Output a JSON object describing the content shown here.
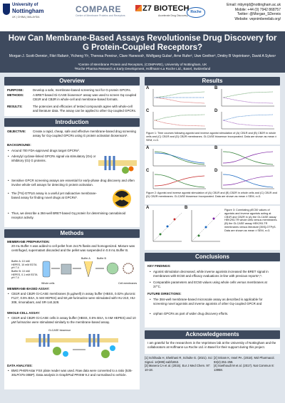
{
  "header": {
    "uon_line1": "University of",
    "uon_line2": "Nottingham",
    "uon_line3": "UK | CHINA | MALAYSIA",
    "compare": "COMPARE",
    "compare_sub": "Centre of Membrane Proteins and Receptors",
    "z7": "Z7 BIOTECH",
    "z7_sub": "Accelerate Drug Discovery",
    "roche": "Roche",
    "email": "Email: mbymjd@nottingham.ac.uk",
    "mobile": "Mobile: +44 (0) 7942 868757",
    "twitter": "Twitter: @Morgan_SDennis",
    "website": "Website: vepnimbereilab.org/"
  },
  "title": "How Can Membrane-Based Assays Revolutionise Drug Discovery for G Protein-Coupled Receptors?",
  "authors": "Morgan J. Scott-Dennis¹, Fikri Rafani¹, Yicheng Yi¹, Theresa Pereira¹, Clare Harwood¹, Wolfgang Guba², Arne Rufer², Uwe Grether², Dmitry B Veprintsev¹, David A Sykes¹",
  "affiliations": [
    "¹Centre of Membrane Protein and Receptors, (COMPARE), University of Nottingham, UK",
    "²Roche Pharma Research & Early Development, Hoffmann-La Roche Ltd., Basel, Switzerland"
  ],
  "overview": {
    "heading": "Overview",
    "purpose_label": "PURPOSE:",
    "purpose": "Develop a safe, membrane-based screening tool for G‑protein GPCRs.",
    "methods_label": "METHODS:",
    "methods": "A BRET-based Gi-CASE biosensor¹ assay was used to screen Gq-coupled CB1R and CB2R in whole-cell and membrane-based formats.",
    "results_label": "RESULTS:",
    "results": "The potencies and efficacies of tested compounds agree with whole-cell and literature data. The assay can be applied to other Gq-coupled GPCRs."
  },
  "introduction": {
    "heading": "Introduction",
    "objective_label": "OBJECTIVE:",
    "objective": "Create a rapid, cheap, safe and effective membrane-based drug screening assay for Gq-coupled GPCRs using G protein activation biosensors¹.",
    "background_label": "BACKGROUND:",
    "bullets": [
      "Around 700 FDA-approved drugs target GPCRs².",
      "Adenylyl cyclase-linked GPCRs signal via stimulatory (Gs) or inhibitory (Gi) G proteins.",
      "Sensitive GPCR screening assays are essential for early-phase drug discovery and often involve whole-cell assays for detecting G protein activation.",
      "The [³⁵S]-GTPγS assay is a useful yet radioactive membrane-based assay for finding novel drugs at GPCRs³.",
      "Thus, we describe a 384-well BRET-based Gq protein for determining cannabinoid receptor activity."
    ]
  },
  "methods": {
    "heading": "Methods",
    "prep_label": "MEMBRANE PREPARATION:",
    "prep": "20 mL Buffer A was added to cell pellet from 2x175 flasks and homogenized. Mixture was centrifuged, supernatant discarded and the pellet was suspended in 0.8 mL Buffer B.",
    "buffer_a": "Buffer A: 10 mM HEPES, 10 mM EDTA pH 7.4",
    "buffer_b": "Buffer B: 10 mM HEPES, 0.1 mM EDTA pH 7.4",
    "diag_buffer_a": "Buffer A",
    "diag_buffer_b": "Buffer B",
    "diag_whole": "Whole cells",
    "diag_membranes": "Cell membranes",
    "binding_label": "MEMBRANE-BASED ASSAY:",
    "binding": "CB1R and CB2R Gi-CASE membranes (5 µg/well) in assay buffer (HBSS, 0.02% pluronic F127, 0.5% BSA, 5 mM HEPES) and 50 µM furimazine were stimulated with HU-210, HU-308, rimonabant, and SR-144,528.",
    "wholecell_label": "WHOLE-CELL ASSAY:",
    "wholecell": "CB1R and CB2R Gi-CASE cells in assay buffer (HBSS, 0.5% BSA, 5 mM HEPES) and 10 µM furimazine were stimulated similarly to the membrane-based assay.",
    "biosensor_label": "Gi-CASE biosensor",
    "analysis_label": "DATA ANALYSIS:",
    "analysis": "BMG PHERAstar FSX plate reader was used. Raw data were converted to a ratio (535-30LP/475-30BP). Data analysis in GraphPad PRISM 9.2 and normalised to vehicle."
  },
  "results": {
    "heading": "Results",
    "fig1_caption": "Figure 1: Time courses following agonist and inverse agonist stimulation of (A) CB1R and (B) CB2R in whole cells and (C) CB1R and (D) CB2R membranes. Gi-CASE biosensor incorporated. Data are shown as mean ± SEM, n=3.",
    "fig2_caption": "Figure 2: Agonist and inverse agonist stimulation of (A) CB1R and (B) CB2R in whole cells and (C) CB1R and (D) CB2R membranes. Gi-CASE biosensor incorporated. Data are shown as mean ± SEM, n=3.",
    "fig3_caption": "Figure 3: Correlating pEC50 values of agonists and inverse agonists acting at CB1R and CB2R in (A) the Gi-CASE assay HEK293-TR whole cells versus membranes. (B) the Gi-CASE assay HEK293-TR membranes versus literature [35S]-GTPγS. Data are shown as mean ± SEM, n=3.",
    "panels": [
      "A",
      "B",
      "C",
      "D"
    ],
    "fig3_panels": [
      "A",
      "B"
    ]
  },
  "conclusions": {
    "heading": "Conclusions",
    "key_label": "KEY FINDINGS:",
    "key": [
      "Agonist stimulation decreased, while inverse agonists increased the BRET signal in membranes with EC50 and efficacy evaluations in-line with previous reports⁴,⁵.",
      "Comparable parameters and EC50 values using whole cells versus membranes at 37°C."
    ],
    "future_label": "FUTURE DIRECTIONS:",
    "future": [
      "The 384-well membrane-based microscale assay as described is applicable for screening novel agonists and inverse agonists of other Gq-coupled GPCR and",
      "orphan GPCRs as part of wider drug discovery efforts."
    ]
  },
  "acknowledgements": {
    "heading": "Acknowledgements",
    "text": "I am grateful for the researchers in the Veprintsev lab at the University of Nottingham and the collaborators at Hoffmann-La Roche Ltd. in Basel for their support during this project."
  },
  "references": [
    "[1] Schihada H, Shekhani R, Schulte G. (2021). Sci Signal. 14(699):eabf1653.",
    "[2] Sriram K, Insel PA. (2018). Mol Pharmacol. 93(4):251-258.",
    "[3] Manera CA et al. (2015). Eur J Med Chem. 97: 10-18.",
    "[4] Soethoudt M et al. (2017). Nat Commun 8: 13958."
  ],
  "colors": {
    "header_bar": "#3e4a5e",
    "background": "#dfe5ec",
    "series_agonist1": "#2e7d32",
    "series_agonist2": "#1565c0",
    "series_inverse1": "#c62828",
    "series_inverse2": "#7b1fa2"
  }
}
